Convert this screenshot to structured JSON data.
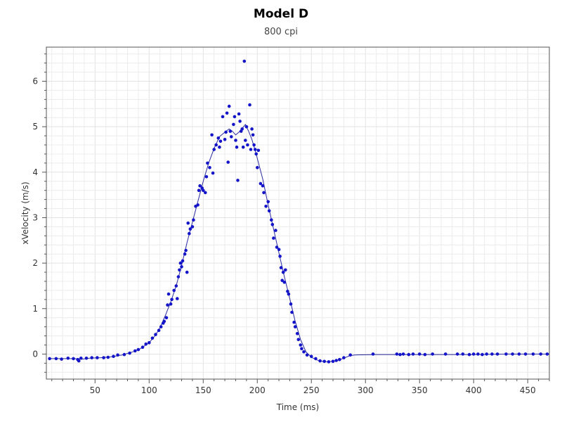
{
  "chart_data": {
    "type": "scatter",
    "title": "Model D",
    "subtitle": "800 cpi",
    "xlabel": "Time (ms)",
    "ylabel": "xVelocity (m/s)",
    "xlim": [
      5,
      470
    ],
    "ylim": [
      -0.55,
      6.75
    ],
    "xticks": [
      50,
      100,
      150,
      200,
      250,
      300,
      350,
      400,
      450
    ],
    "yticks": [
      0,
      1,
      2,
      3,
      4,
      5,
      6
    ],
    "grid": true,
    "legend": "none",
    "colors": {
      "points": "#1414c8",
      "line": "#2a2aa0",
      "grid": "#ececec",
      "axis": "#555555"
    },
    "series": [
      {
        "type": "scatter",
        "points": [
          [
            8,
            -0.1
          ],
          [
            14,
            -0.1
          ],
          [
            19,
            -0.11
          ],
          [
            25,
            -0.09
          ],
          [
            30,
            -0.1
          ],
          [
            34,
            -0.12
          ],
          [
            35,
            -0.15
          ],
          [
            37,
            -0.09
          ],
          [
            42,
            -0.09
          ],
          [
            47,
            -0.08
          ],
          [
            52,
            -0.08
          ],
          [
            58,
            -0.08
          ],
          [
            62,
            -0.07
          ],
          [
            67,
            -0.05
          ],
          [
            71,
            -0.02
          ],
          [
            77,
            -0.01
          ],
          [
            82,
            0.02
          ],
          [
            87,
            0.07
          ],
          [
            90,
            0.1
          ],
          [
            94,
            0.15
          ],
          [
            97,
            0.22
          ],
          [
            100,
            0.25
          ],
          [
            103,
            0.35
          ],
          [
            106,
            0.43
          ],
          [
            109,
            0.52
          ],
          [
            111,
            0.6
          ],
          [
            113,
            0.68
          ],
          [
            114,
            0.72
          ],
          [
            116,
            0.8
          ],
          [
            117,
            1.08
          ],
          [
            118,
            1.32
          ],
          [
            120,
            1.1
          ],
          [
            121,
            1.2
          ],
          [
            123,
            1.4
          ],
          [
            125,
            1.5
          ],
          [
            126,
            1.22
          ],
          [
            127,
            1.7
          ],
          [
            128,
            1.85
          ],
          [
            129,
            2.0
          ],
          [
            130,
            1.92
          ],
          [
            131,
            2.05
          ],
          [
            133,
            2.2
          ],
          [
            134,
            2.28
          ],
          [
            135,
            1.8
          ],
          [
            136,
            2.88
          ],
          [
            137,
            2.65
          ],
          [
            138,
            2.75
          ],
          [
            140,
            2.8
          ],
          [
            141,
            2.95
          ],
          [
            143,
            3.25
          ],
          [
            145,
            3.28
          ],
          [
            146,
            3.6
          ],
          [
            147,
            3.7
          ],
          [
            149,
            3.65
          ],
          [
            150,
            3.6
          ],
          [
            152,
            3.55
          ],
          [
            153,
            3.9
          ],
          [
            154,
            4.2
          ],
          [
            156,
            4.1
          ],
          [
            158,
            4.82
          ],
          [
            159,
            3.98
          ],
          [
            160,
            4.5
          ],
          [
            162,
            4.6
          ],
          [
            164,
            4.75
          ],
          [
            165,
            4.55
          ],
          [
            166,
            4.68
          ],
          [
            168,
            5.22
          ],
          [
            170,
            4.72
          ],
          [
            171,
            4.88
          ],
          [
            172,
            5.3
          ],
          [
            173,
            4.22
          ],
          [
            174,
            5.45
          ],
          [
            175,
            4.9
          ],
          [
            176,
            4.78
          ],
          [
            178,
            5.05
          ],
          [
            179,
            5.22
          ],
          [
            180,
            4.7
          ],
          [
            181,
            4.55
          ],
          [
            182,
            3.82
          ],
          [
            183,
            5.28
          ],
          [
            184,
            5.12
          ],
          [
            185,
            4.9
          ],
          [
            186,
            4.95
          ],
          [
            187,
            4.55
          ],
          [
            188,
            6.44
          ],
          [
            189,
            4.7
          ],
          [
            190,
            5.0
          ],
          [
            191,
            4.6
          ],
          [
            193,
            5.48
          ],
          [
            194,
            4.5
          ],
          [
            195,
            4.95
          ],
          [
            196,
            4.82
          ],
          [
            197,
            4.6
          ],
          [
            198,
            4.5
          ],
          [
            199,
            4.4
          ],
          [
            200,
            4.1
          ],
          [
            201,
            4.48
          ],
          [
            203,
            3.75
          ],
          [
            205,
            3.7
          ],
          [
            206,
            3.55
          ],
          [
            208,
            3.25
          ],
          [
            210,
            3.35
          ],
          [
            211,
            3.15
          ],
          [
            213,
            2.95
          ],
          [
            214,
            2.85
          ],
          [
            215,
            2.55
          ],
          [
            217,
            2.72
          ],
          [
            218,
            2.35
          ],
          [
            220,
            2.3
          ],
          [
            221,
            2.15
          ],
          [
            222,
            1.9
          ],
          [
            223,
            1.62
          ],
          [
            224,
            1.8
          ],
          [
            225,
            1.58
          ],
          [
            226,
            1.85
          ],
          [
            228,
            1.38
          ],
          [
            229,
            1.32
          ],
          [
            231,
            1.1
          ],
          [
            232,
            0.92
          ],
          [
            234,
            0.7
          ],
          [
            235,
            0.6
          ],
          [
            237,
            0.45
          ],
          [
            238,
            0.32
          ],
          [
            240,
            0.2
          ],
          [
            241,
            0.12
          ],
          [
            243,
            0.05
          ],
          [
            246,
            -0.02
          ],
          [
            250,
            -0.05
          ],
          [
            254,
            -0.1
          ],
          [
            258,
            -0.15
          ],
          [
            262,
            -0.16
          ],
          [
            266,
            -0.17
          ],
          [
            270,
            -0.16
          ],
          [
            273,
            -0.14
          ],
          [
            276,
            -0.12
          ],
          [
            280,
            -0.08
          ],
          [
            286,
            -0.02
          ],
          [
            307,
            0.0
          ],
          [
            329,
            0.0
          ],
          [
            332,
            -0.01
          ],
          [
            335,
            0.0
          ],
          [
            340,
            -0.01
          ],
          [
            344,
            0.0
          ],
          [
            350,
            0.0
          ],
          [
            355,
            -0.01
          ],
          [
            362,
            0.0
          ],
          [
            374,
            0.0
          ],
          [
            385,
            0.0
          ],
          [
            390,
            0.0
          ],
          [
            396,
            -0.01
          ],
          [
            400,
            0.0
          ],
          [
            404,
            0.0
          ],
          [
            408,
            -0.01
          ],
          [
            412,
            0.0
          ],
          [
            417,
            0.0
          ],
          [
            422,
            0.0
          ],
          [
            430,
            0.0
          ],
          [
            436,
            0.0
          ],
          [
            442,
            0.0
          ],
          [
            448,
            0.0
          ],
          [
            455,
            0.0
          ],
          [
            462,
            0.0
          ],
          [
            468,
            0.0
          ]
        ]
      },
      {
        "type": "line",
        "points": [
          [
            8,
            -0.1
          ],
          [
            20,
            -0.1
          ],
          [
            30,
            -0.1
          ],
          [
            38,
            -0.11
          ],
          [
            45,
            -0.09
          ],
          [
            55,
            -0.08
          ],
          [
            65,
            -0.06
          ],
          [
            75,
            -0.02
          ],
          [
            85,
            0.05
          ],
          [
            92,
            0.12
          ],
          [
            100,
            0.25
          ],
          [
            106,
            0.42
          ],
          [
            110,
            0.58
          ],
          [
            115,
            0.85
          ],
          [
            120,
            1.15
          ],
          [
            125,
            1.5
          ],
          [
            130,
            1.95
          ],
          [
            135,
            2.45
          ],
          [
            140,
            2.9
          ],
          [
            145,
            3.35
          ],
          [
            150,
            3.8
          ],
          [
            155,
            4.2
          ],
          [
            160,
            4.52
          ],
          [
            165,
            4.78
          ],
          [
            170,
            4.88
          ],
          [
            174,
            4.95
          ],
          [
            177,
            4.9
          ],
          [
            180,
            4.82
          ],
          [
            183,
            4.88
          ],
          [
            186,
            4.96
          ],
          [
            189,
            5.05
          ],
          [
            192,
            4.9
          ],
          [
            195,
            4.72
          ],
          [
            198,
            4.48
          ],
          [
            200,
            4.3
          ],
          [
            205,
            3.85
          ],
          [
            210,
            3.28
          ],
          [
            215,
            2.75
          ],
          [
            220,
            2.22
          ],
          [
            225,
            1.7
          ],
          [
            230,
            1.22
          ],
          [
            235,
            0.72
          ],
          [
            240,
            0.32
          ],
          [
            245,
            0.05
          ],
          [
            250,
            -0.07
          ],
          [
            255,
            -0.13
          ],
          [
            260,
            -0.16
          ],
          [
            265,
            -0.17
          ],
          [
            270,
            -0.16
          ],
          [
            275,
            -0.13
          ],
          [
            280,
            -0.09
          ],
          [
            285,
            -0.04
          ],
          [
            290,
            -0.02
          ],
          [
            310,
            -0.01
          ],
          [
            340,
            -0.01
          ],
          [
            370,
            -0.01
          ],
          [
            400,
            -0.01
          ],
          [
            430,
            0.0
          ],
          [
            470,
            0.0
          ]
        ]
      }
    ]
  }
}
